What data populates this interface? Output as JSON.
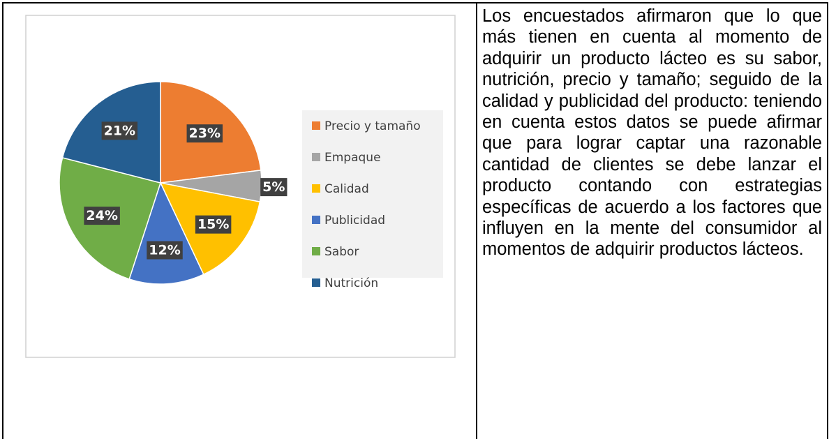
{
  "chart_data": {
    "type": "pie",
    "categories": [
      "Precio y tamaño",
      "Empaque",
      "Calidad",
      "Publicidad",
      "Sabor",
      "Nutrición"
    ],
    "values": [
      23,
      5,
      15,
      12,
      24,
      21
    ],
    "value_labels": [
      "23%",
      "5%",
      "15%",
      "12%",
      "24%",
      "21%"
    ],
    "colors": [
      "#ed7d31",
      "#a5a5a5",
      "#ffc000",
      "#4472c4",
      "#70ad47",
      "#255e91"
    ],
    "legend": "right"
  },
  "text": "Los encuestados afirmaron que lo que más tienen en cuenta al momento de adquirir un producto lácteo es su sabor, nutrición, precio y tamaño; seguido de la calidad y publicidad del producto: teniendo en cuenta estos datos se puede afirmar que para lograr captar una razonable cantidad de clientes se debe lanzar el producto contando con estrategias específicas de acuerdo a los factores que influyen en la mente del consumidor al momentos de adquirir productos lácteos."
}
